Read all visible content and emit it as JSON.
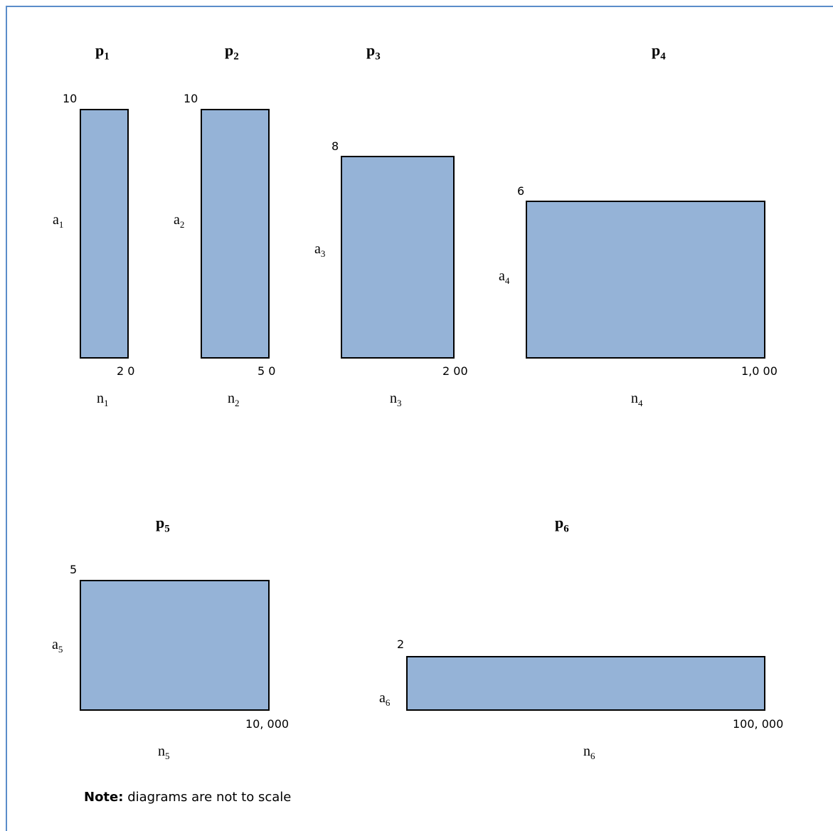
{
  "note": {
    "label": "Note:",
    "text": "diagrams are not to scale"
  },
  "panels": [
    {
      "title": {
        "base": "p",
        "sub": "1"
      },
      "a": {
        "base": "a",
        "sub": "1"
      },
      "n": {
        "base": "n",
        "sub": "1"
      },
      "top_value": "10",
      "right_value": "2 0"
    },
    {
      "title": {
        "base": "p",
        "sub": "2"
      },
      "a": {
        "base": "a",
        "sub": "2"
      },
      "n": {
        "base": "n",
        "sub": "2"
      },
      "top_value": "10",
      "right_value": "5 0"
    },
    {
      "title": {
        "base": "p",
        "sub": "3"
      },
      "a": {
        "base": "a",
        "sub": "3"
      },
      "n": {
        "base": "n",
        "sub": "3"
      },
      "top_value": "8",
      "right_value": "2 00"
    },
    {
      "title": {
        "base": "p",
        "sub": "4"
      },
      "a": {
        "base": "a",
        "sub": "4"
      },
      "n": {
        "base": "n",
        "sub": "4"
      },
      "top_value": "6",
      "right_value": "1,0 00"
    },
    {
      "title": {
        "base": "p",
        "sub": "5"
      },
      "a": {
        "base": "a",
        "sub": "5"
      },
      "n": {
        "base": "n",
        "sub": "5"
      },
      "top_value": "5",
      "right_value": "10, 000"
    },
    {
      "title": {
        "base": "p",
        "sub": "6"
      },
      "a": {
        "base": "a",
        "sub": "6"
      },
      "n": {
        "base": "n",
        "sub": "6"
      },
      "top_value": "2",
      "right_value": "100, 000"
    }
  ],
  "colors": {
    "box_fill": "#95b3d7",
    "frame": "#5b8dc9"
  }
}
